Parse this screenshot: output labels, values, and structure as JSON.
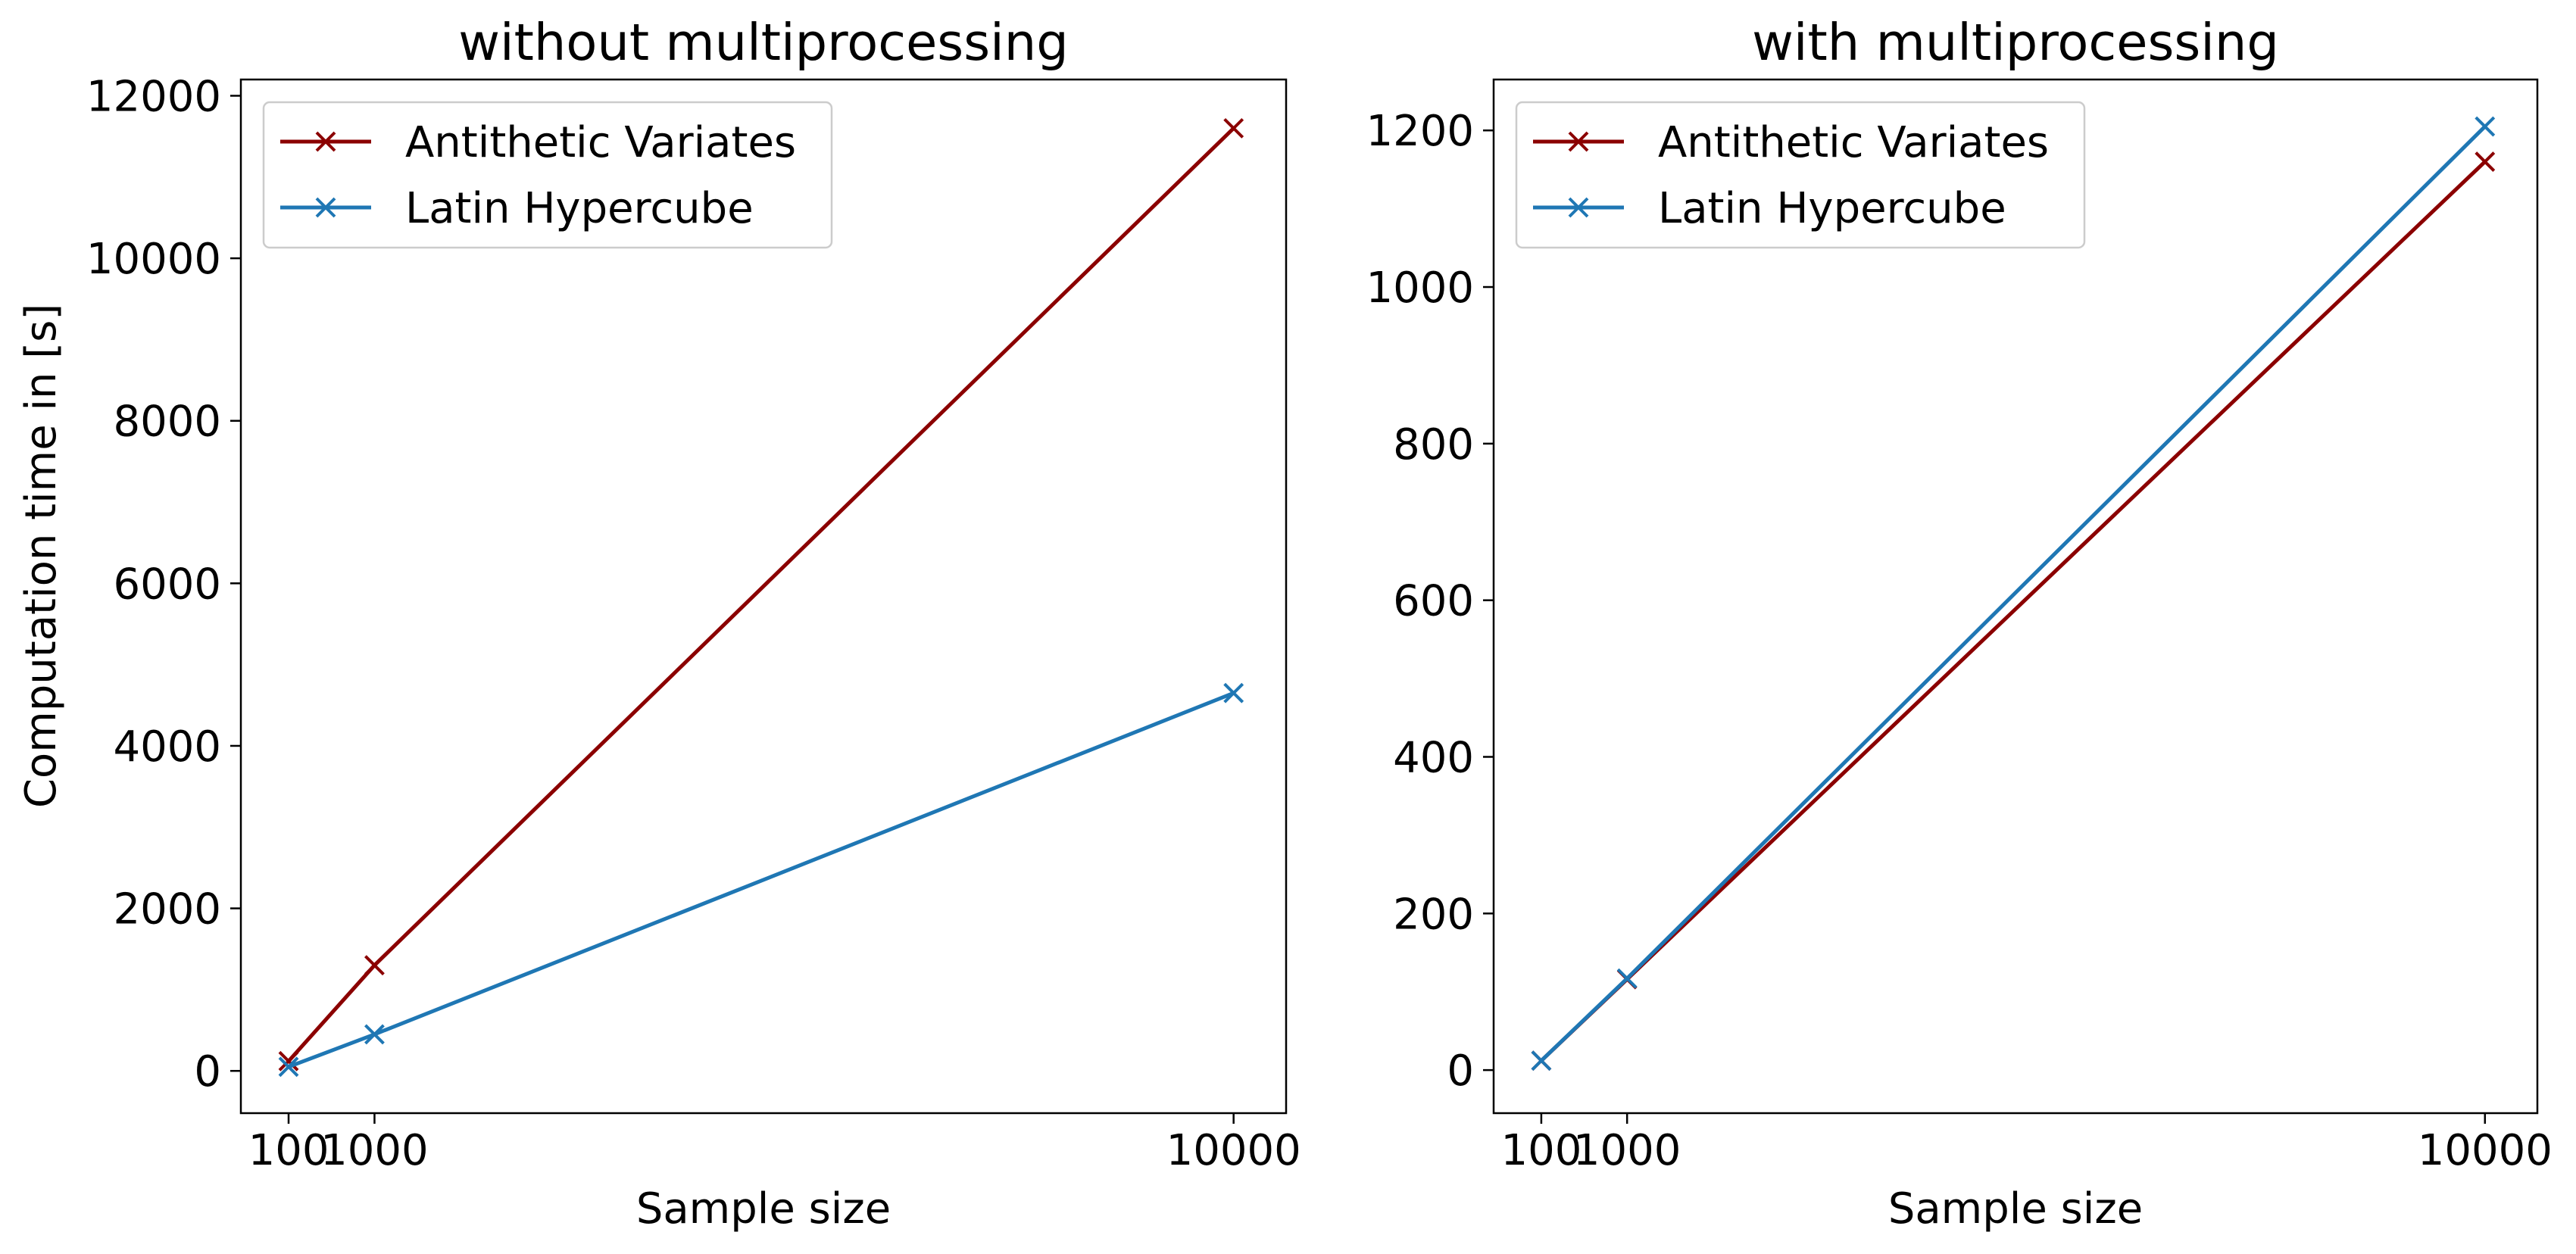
{
  "chart_data": [
    {
      "type": "line",
      "title": "without multiprocessing",
      "xlabel": "Sample size",
      "ylabel": "Computation time in [s]",
      "xlim": [
        -400,
        10550
      ],
      "ylim": [
        -520,
        12200
      ],
      "xticks": [
        100,
        1000,
        10000
      ],
      "xtick_labels": [
        "100",
        "1000",
        "10000"
      ],
      "yticks": [
        0,
        2000,
        4000,
        6000,
        8000,
        10000,
        12000
      ],
      "ytick_labels": [
        "0",
        "2000",
        "4000",
        "6000",
        "8000",
        "10000",
        "12000"
      ],
      "legend_position": "upper-left",
      "x": [
        100,
        1000,
        10000
      ],
      "series": [
        {
          "name": "Antithetic Variates",
          "color": "#8b0000",
          "marker": "x",
          "values": [
            120,
            1300,
            11600
          ]
        },
        {
          "name": "Latin Hypercube",
          "color": "#1f77b4",
          "marker": "x",
          "values": [
            50,
            450,
            4650
          ]
        }
      ]
    },
    {
      "type": "line",
      "title": "with multiprocessing",
      "xlabel": "Sample size",
      "ylabel": "",
      "xlim": [
        -400,
        10550
      ],
      "ylim": [
        -55,
        1265
      ],
      "xticks": [
        100,
        1000,
        10000
      ],
      "xtick_labels": [
        "100",
        "1000",
        "10000"
      ],
      "yticks": [
        0,
        200,
        400,
        600,
        800,
        1000,
        1200
      ],
      "ytick_labels": [
        "0",
        "200",
        "400",
        "600",
        "800",
        "1000",
        "1200"
      ],
      "legend_position": "upper-left",
      "x": [
        100,
        1000,
        10000
      ],
      "series": [
        {
          "name": "Antithetic Variates",
          "color": "#8b0000",
          "marker": "x",
          "values": [
            12,
            116,
            1160
          ]
        },
        {
          "name": "Latin Hypercube",
          "color": "#1f77b4",
          "marker": "x",
          "values": [
            12,
            117,
            1205
          ]
        }
      ]
    }
  ]
}
